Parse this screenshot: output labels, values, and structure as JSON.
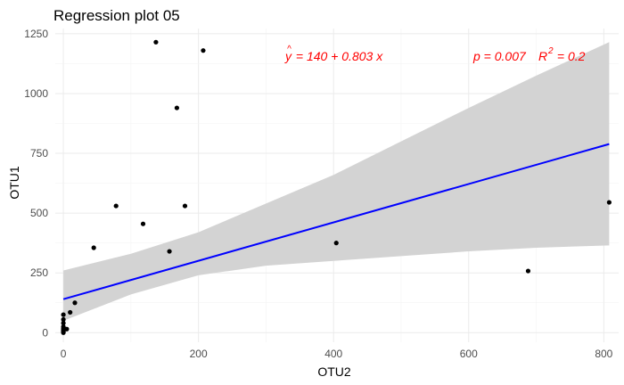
{
  "chart_data": {
    "type": "scatter",
    "title": "Regression plot 05",
    "xlabel": "OTU2",
    "ylabel": "OTU1",
    "xlim": [
      -12,
      822
    ],
    "ylim": [
      -40,
      1272
    ],
    "x_ticks": [
      0,
      200,
      400,
      600,
      800
    ],
    "y_ticks": [
      0,
      250,
      500,
      750,
      1000,
      1250
    ],
    "x_tick_labels": [
      "0",
      "200",
      "400",
      "600",
      "800"
    ],
    "y_tick_labels": [
      "0",
      "250",
      "500",
      "750",
      "1000",
      "1250"
    ],
    "grid": true,
    "points": [
      {
        "x": 0,
        "y": 0
      },
      {
        "x": 0,
        "y": 3
      },
      {
        "x": 0,
        "y": 8
      },
      {
        "x": 0,
        "y": 12
      },
      {
        "x": 0,
        "y": 18
      },
      {
        "x": 0,
        "y": 25
      },
      {
        "x": 0,
        "y": 40
      },
      {
        "x": 0,
        "y": 55
      },
      {
        "x": 0,
        "y": 75
      },
      {
        "x": 5,
        "y": 15
      },
      {
        "x": 10,
        "y": 85
      },
      {
        "x": 17,
        "y": 125
      },
      {
        "x": 45,
        "y": 355
      },
      {
        "x": 78,
        "y": 530
      },
      {
        "x": 118,
        "y": 455
      },
      {
        "x": 137,
        "y": 1215
      },
      {
        "x": 157,
        "y": 340
      },
      {
        "x": 168,
        "y": 940
      },
      {
        "x": 180,
        "y": 530
      },
      {
        "x": 207,
        "y": 1180
      },
      {
        "x": 404,
        "y": 375
      },
      {
        "x": 688,
        "y": 258
      },
      {
        "x": 808,
        "y": 545
      }
    ],
    "fit": {
      "intercept": 140,
      "slope": 0.803,
      "x_range": [
        0,
        808
      ]
    },
    "band": {
      "x": [
        0,
        100,
        200,
        300,
        400,
        500,
        600,
        700,
        808
      ],
      "upper": [
        260,
        330,
        420,
        540,
        660,
        800,
        940,
        1075,
        1215
      ],
      "lower": [
        50,
        160,
        240,
        280,
        300,
        320,
        340,
        355,
        365
      ]
    },
    "colors": {
      "points": "#000000",
      "line": "#0000ff",
      "band": "#d3d3d3",
      "annotation": "#ff0000",
      "grid": "#ebebeb"
    },
    "annotations": {
      "equation": {
        "yhat_letter": "y",
        "hat": "^",
        "rest": " = 140 + 0.803 x"
      },
      "stats": {
        "p_text": "p = 0.007",
        "r2_text": "R",
        "r2_sup": "2",
        "r2_value": " = 0.2"
      }
    }
  }
}
